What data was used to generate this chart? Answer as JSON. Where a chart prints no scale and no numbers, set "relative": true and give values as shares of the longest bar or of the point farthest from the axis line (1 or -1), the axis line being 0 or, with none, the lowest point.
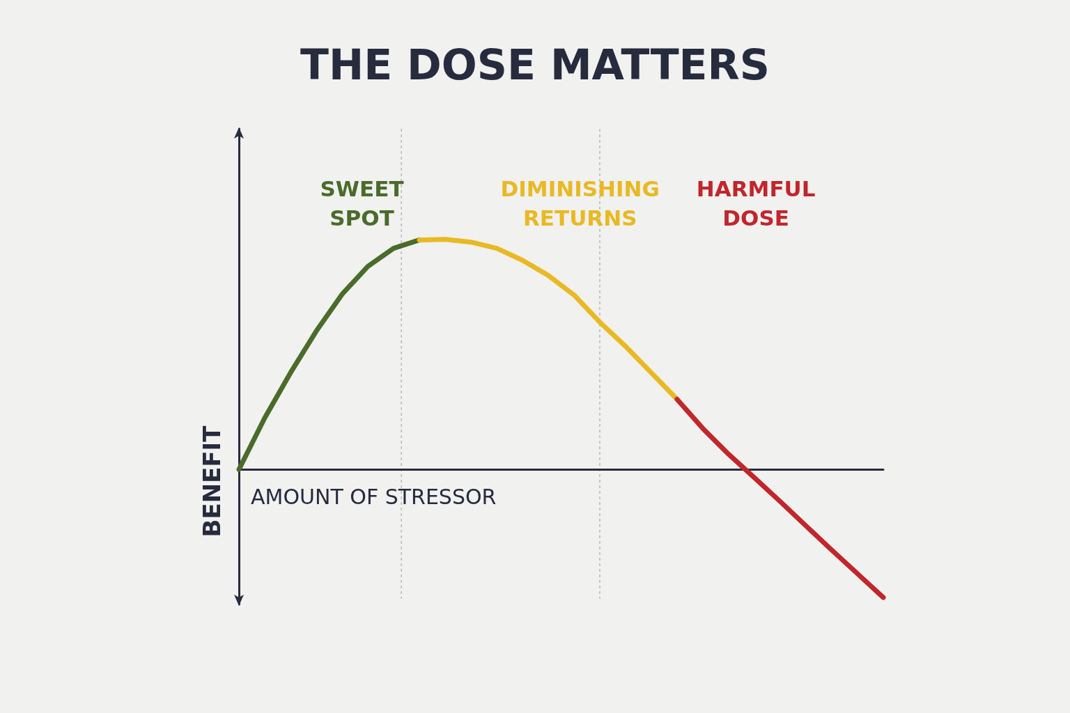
{
  "chart_data": {
    "type": "line",
    "title": "THE DOSE MATTERS",
    "xlabel": "AMOUNT OF STRESSOR",
    "ylabel": "BENEFIT",
    "relative": true,
    "marker": "none",
    "line_style": "solid",
    "annotations": [
      "SWEET\nSPOT",
      "DIMINISHING\nRETURNS",
      "HARMFUL\nDOSE"
    ],
    "categories": [
      null,
      null,
      null,
      null,
      null,
      null,
      null,
      null,
      null,
      null,
      null,
      null,
      null,
      null,
      null,
      null,
      null,
      null,
      null,
      null,
      null,
      null,
      null,
      null,
      null,
      null
    ],
    "series": [
      {
        "color": "#4a6b2a",
        "values": [
          0,
          0.224,
          0.42,
          0.601,
          0.761,
          0.882,
          0.961,
          0.997,
          null,
          null,
          null,
          null,
          null,
          null,
          null,
          null,
          null,
          null,
          null,
          null,
          null,
          null,
          null,
          null,
          null,
          null
        ]
      },
      {
        "color": "#e8b923",
        "values": [
          null,
          null,
          null,
          null,
          null,
          null,
          null,
          0.997,
          1,
          0.988,
          0.961,
          0.909,
          0.843,
          0.758,
          0.64,
          0.535,
          0.42,
          0.305,
          null,
          null,
          null,
          null,
          null,
          null,
          null,
          null
        ]
      },
      {
        "color": "#c0262c",
        "values": [
          null,
          null,
          null,
          null,
          null,
          null,
          null,
          null,
          null,
          null,
          null,
          null,
          null,
          null,
          null,
          null,
          null,
          0.305,
          0.178,
          0.066,
          -0.036,
          -0.139,
          -0.245,
          -0.35,
          -0.453,
          -0.556
        ]
      }
    ]
  }
}
